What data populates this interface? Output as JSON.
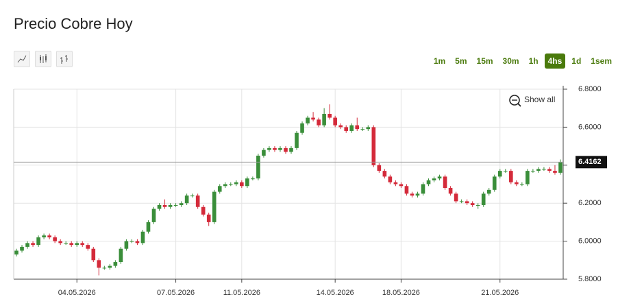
{
  "header": {
    "title": "Precio Cobre Hoy"
  },
  "toolbar": {
    "intervals": [
      "1m",
      "5m",
      "15m",
      "30m",
      "1h",
      "4hs",
      "1d",
      "1sem"
    ],
    "active": 5,
    "show_all": "Show all"
  },
  "chart_data": {
    "type": "candlestick",
    "categories": [
      null,
      null,
      null,
      null,
      null,
      null,
      null,
      null,
      null,
      null,
      null,
      "04.05.2026",
      null,
      null,
      null,
      null,
      null,
      null,
      null,
      null,
      null,
      null,
      null,
      null,
      null,
      null,
      null,
      null,
      null,
      "07.05.2026",
      null,
      null,
      null,
      null,
      null,
      null,
      null,
      null,
      null,
      null,
      null,
      "11.05.2026",
      null,
      null,
      null,
      null,
      null,
      null,
      null,
      null,
      null,
      null,
      null,
      null,
      null,
      null,
      null,
      null,
      "14.05.2026",
      null,
      null,
      null,
      null,
      null,
      null,
      null,
      null,
      null,
      null,
      null,
      "18.05.2026",
      null,
      null,
      null,
      null,
      null,
      null,
      null,
      null,
      null,
      null,
      null,
      null,
      null,
      null,
      null,
      null,
      null,
      "21.05.2026",
      null,
      null,
      null,
      null,
      null,
      null,
      null,
      null,
      null,
      null,
      null
    ],
    "open": [
      5.93,
      5.95,
      5.97,
      5.99,
      5.98,
      6.02,
      6.03,
      6.02,
      6.0,
      5.99,
      5.99,
      5.98,
      5.99,
      5.98,
      5.96,
      5.9,
      5.86,
      5.86,
      5.87,
      5.89,
      5.96,
      6.0,
      6.0,
      5.99,
      6.05,
      6.1,
      6.17,
      6.19,
      6.18,
      6.19,
      6.19,
      6.2,
      6.24,
      6.24,
      6.18,
      6.14,
      6.1,
      6.26,
      6.29,
      6.3,
      6.3,
      6.31,
      6.29,
      6.33,
      6.33,
      6.45,
      6.48,
      6.49,
      6.48,
      6.49,
      6.47,
      6.49,
      6.57,
      6.62,
      6.65,
      6.64,
      6.61,
      6.67,
      6.65,
      6.61,
      6.6,
      6.58,
      6.61,
      6.59,
      6.59,
      6.6,
      6.4,
      6.37,
      6.34,
      6.31,
      6.3,
      6.29,
      6.25,
      6.24,
      6.25,
      6.3,
      6.32,
      6.33,
      6.34,
      6.28,
      6.25,
      6.21,
      6.21,
      6.2,
      6.19,
      6.19,
      6.25,
      6.27,
      6.34,
      6.37,
      6.37,
      6.31,
      6.3,
      6.3,
      6.37,
      6.37,
      6.38,
      6.38,
      6.37,
      6.36
    ],
    "high": [
      5.96,
      5.98,
      6.0,
      6.0,
      6.03,
      6.04,
      6.04,
      6.03,
      6.01,
      6.0,
      6.0,
      6.0,
      6.0,
      5.99,
      5.97,
      5.91,
      5.87,
      5.88,
      5.9,
      5.97,
      6.01,
      6.01,
      6.01,
      6.06,
      6.11,
      6.18,
      6.2,
      6.22,
      6.2,
      6.2,
      6.21,
      6.25,
      6.25,
      6.25,
      6.19,
      6.15,
      6.27,
      6.3,
      6.31,
      6.31,
      6.32,
      6.32,
      6.34,
      6.34,
      6.46,
      6.49,
      6.5,
      6.5,
      6.5,
      6.5,
      6.5,
      6.58,
      6.63,
      6.66,
      6.68,
      6.65,
      6.7,
      6.72,
      6.66,
      6.62,
      6.61,
      6.62,
      6.65,
      6.6,
      6.61,
      6.61,
      6.41,
      6.38,
      6.35,
      6.32,
      6.31,
      6.3,
      6.26,
      6.26,
      6.31,
      6.33,
      6.34,
      6.35,
      6.35,
      6.29,
      6.26,
      6.22,
      6.22,
      6.21,
      6.2,
      6.26,
      6.28,
      6.35,
      6.38,
      6.38,
      6.38,
      6.32,
      6.31,
      6.38,
      6.38,
      6.39,
      6.39,
      6.39,
      6.4,
      6.43
    ],
    "low": [
      5.92,
      5.94,
      5.96,
      5.97,
      5.97,
      6.01,
      6.01,
      5.99,
      5.98,
      5.98,
      5.97,
      5.97,
      5.97,
      5.95,
      5.89,
      5.82,
      5.85,
      5.85,
      5.86,
      5.88,
      5.95,
      5.99,
      5.98,
      5.98,
      6.04,
      6.09,
      6.16,
      6.17,
      6.17,
      6.18,
      6.18,
      6.19,
      6.23,
      6.17,
      6.13,
      6.08,
      6.09,
      6.25,
      6.28,
      6.29,
      6.29,
      6.28,
      6.28,
      6.32,
      6.32,
      6.44,
      6.47,
      6.47,
      6.47,
      6.46,
      6.46,
      6.48,
      6.56,
      6.61,
      6.63,
      6.6,
      6.6,
      6.64,
      6.6,
      6.59,
      6.57,
      6.57,
      6.58,
      6.58,
      6.58,
      6.39,
      6.36,
      6.33,
      6.3,
      6.29,
      6.28,
      6.24,
      6.23,
      6.23,
      6.24,
      6.29,
      6.31,
      6.32,
      6.27,
      6.24,
      6.2,
      6.2,
      6.19,
      6.18,
      6.17,
      6.18,
      6.24,
      6.26,
      6.33,
      6.36,
      6.3,
      6.29,
      6.29,
      6.29,
      6.36,
      6.36,
      6.37,
      6.36,
      6.35,
      6.35
    ],
    "close": [
      5.95,
      5.97,
      5.99,
      5.98,
      6.02,
      6.03,
      6.02,
      6.0,
      5.99,
      5.99,
      5.98,
      5.99,
      5.98,
      5.96,
      5.9,
      5.86,
      5.86,
      5.87,
      5.89,
      5.96,
      6.0,
      6.0,
      5.99,
      6.05,
      6.1,
      6.17,
      6.19,
      6.18,
      6.19,
      6.19,
      6.2,
      6.24,
      6.24,
      6.18,
      6.14,
      6.1,
      6.26,
      6.29,
      6.3,
      6.3,
      6.31,
      6.29,
      6.33,
      6.33,
      6.45,
      6.48,
      6.49,
      6.48,
      6.49,
      6.47,
      6.49,
      6.57,
      6.62,
      6.65,
      6.64,
      6.61,
      6.67,
      6.65,
      6.61,
      6.6,
      6.58,
      6.61,
      6.59,
      6.59,
      6.6,
      6.4,
      6.37,
      6.34,
      6.31,
      6.3,
      6.29,
      6.25,
      6.24,
      6.25,
      6.3,
      6.32,
      6.33,
      6.34,
      6.28,
      6.25,
      6.21,
      6.21,
      6.2,
      6.19,
      6.19,
      6.25,
      6.27,
      6.34,
      6.37,
      6.37,
      6.31,
      6.3,
      6.3,
      6.37,
      6.37,
      6.38,
      6.38,
      6.37,
      6.36,
      6.4162
    ],
    "up_color": "#3a8e3a",
    "down_color": "#d42a3a",
    "ylim": [
      5.8,
      6.8
    ],
    "yticks": [
      {
        "value": 5.8,
        "label": "5.8000"
      },
      {
        "value": 6.0,
        "label": "6.0000"
      },
      {
        "value": 6.2,
        "label": "6.2000"
      },
      {
        "value": 6.4,
        "label": "6.4000"
      },
      {
        "value": 6.6,
        "label": "6.6000"
      },
      {
        "value": 6.8,
        "label": "6.8000"
      }
    ],
    "grid": true
  }
}
